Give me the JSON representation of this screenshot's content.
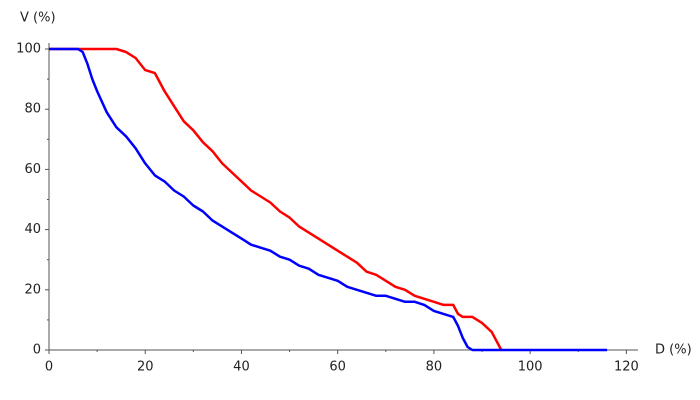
{
  "chart_data": {
    "type": "line",
    "x_label": "D (%)",
    "y_label": "V (%)",
    "x": [
      0,
      2,
      4,
      6,
      7,
      8,
      9,
      10,
      12,
      14,
      16,
      18,
      20,
      22,
      24,
      26,
      28,
      30,
      32,
      34,
      36,
      38,
      40,
      42,
      44,
      46,
      48,
      50,
      52,
      54,
      56,
      58,
      60,
      62,
      64,
      66,
      68,
      70,
      72,
      74,
      76,
      78,
      80,
      82,
      84,
      85,
      86,
      87,
      88,
      90,
      92,
      94,
      96,
      98,
      100,
      102,
      104,
      106,
      108,
      110,
      112,
      114,
      116
    ],
    "series": [
      {
        "color": "#ff0000",
        "values": [
          100,
          100,
          100,
          100,
          100,
          100,
          100,
          100,
          100,
          100,
          99,
          97,
          93,
          92,
          86,
          81,
          76,
          73,
          69,
          66,
          62,
          59,
          56,
          53,
          51,
          49,
          46,
          44,
          41,
          39,
          37,
          35,
          33,
          31,
          29,
          26,
          25,
          23,
          21,
          20,
          18,
          17,
          16,
          15,
          15,
          12,
          11,
          11,
          11,
          9,
          6,
          0,
          null,
          null,
          null,
          null,
          null,
          null,
          null,
          null,
          null,
          null,
          null
        ]
      },
      {
        "color": "#0000ff",
        "values": [
          100,
          100,
          100,
          100,
          99,
          95,
          90,
          86,
          79,
          74,
          71,
          67,
          62,
          58,
          56,
          53,
          51,
          48,
          46,
          43,
          41,
          39,
          37,
          35,
          34,
          33,
          31,
          30,
          28,
          27,
          25,
          24,
          23,
          21,
          20,
          19,
          18,
          18,
          17,
          16,
          16,
          15,
          13,
          12,
          11,
          8,
          4,
          1,
          0,
          0,
          0,
          0,
          0,
          0,
          0,
          0,
          0,
          0,
          0,
          0,
          0,
          0,
          0
        ]
      }
    ],
    "xlim": [
      0,
      122
    ],
    "ylim": [
      0,
      100
    ],
    "xticks": [
      0,
      20,
      40,
      60,
      80,
      100,
      120
    ],
    "yticks": [
      0,
      20,
      40,
      60,
      80,
      100
    ]
  }
}
